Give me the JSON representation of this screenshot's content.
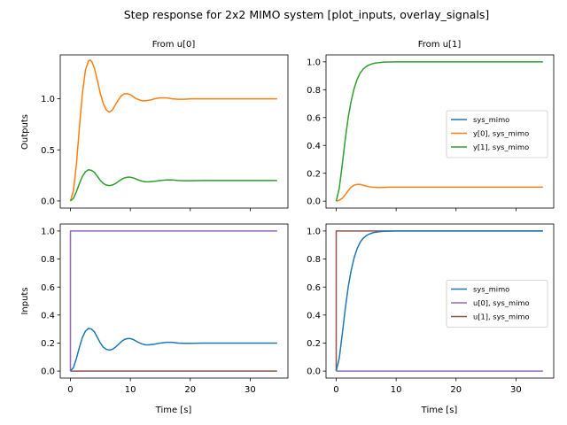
{
  "figure": {
    "title": "Step response for 2x2 MIMO system [plot_inputs, overlay_signals]",
    "col_titles": [
      "From u[0]",
      "From u[1]"
    ],
    "row_labels": [
      "Outputs",
      "Inputs"
    ],
    "xlabel": "Time [s]"
  },
  "chart_data": [
    {
      "type": "line",
      "panel": "outputs-from-u0",
      "title": "From u[0]",
      "xlabel": "",
      "ylabel": "Outputs",
      "xlim": [
        -1.7,
        36.3
      ],
      "ylim": [
        -0.07,
        1.43
      ],
      "xticks": [
        0,
        10,
        20,
        30
      ],
      "yticks": [
        0.0,
        0.5,
        1.0
      ],
      "ytick_labels": [
        "0.0",
        "0.5",
        "1.0"
      ],
      "show_xticklabels": false,
      "grid": false,
      "legend": null,
      "series": [
        {
          "name": "y[0], sys_mimo",
          "color": "#ff7f0e",
          "x": [
            0,
            0.5,
            1,
            1.5,
            2,
            2.5,
            3,
            3.3,
            3.6,
            4,
            4.5,
            5,
            5.5,
            6,
            6.5,
            7,
            7.5,
            8,
            8.5,
            9,
            9.5,
            10,
            10.5,
            11,
            11.5,
            12,
            12.5,
            13,
            13.5,
            14,
            14.5,
            15,
            16,
            17,
            18,
            19,
            20,
            22,
            25,
            30,
            34.5
          ],
          "y": [
            0,
            0.1,
            0.36,
            0.72,
            1.05,
            1.28,
            1.37,
            1.38,
            1.36,
            1.3,
            1.18,
            1.05,
            0.95,
            0.89,
            0.87,
            0.89,
            0.94,
            0.99,
            1.03,
            1.05,
            1.05,
            1.04,
            1.02,
            1.0,
            0.99,
            0.98,
            0.98,
            0.985,
            0.99,
            1.0,
            1.005,
            1.01,
            1.01,
            1.0,
            0.995,
            0.995,
            1.0,
            1.0,
            1.0,
            1.0,
            1.0
          ]
        },
        {
          "name": "y[1], sys_mimo",
          "color": "#2ca02c",
          "x": [
            0,
            0.5,
            1,
            1.5,
            2,
            2.5,
            3,
            3.5,
            4,
            4.5,
            5,
            5.5,
            6,
            6.5,
            7,
            7.5,
            8,
            8.5,
            9,
            9.5,
            10,
            10.5,
            11,
            11.5,
            12,
            12.5,
            13,
            14,
            15,
            16,
            17,
            18,
            19,
            20,
            22,
            25,
            30,
            34.5
          ],
          "y": [
            0,
            0.025,
            0.09,
            0.17,
            0.24,
            0.285,
            0.305,
            0.3,
            0.28,
            0.24,
            0.2,
            0.17,
            0.155,
            0.15,
            0.155,
            0.17,
            0.19,
            0.21,
            0.225,
            0.232,
            0.232,
            0.225,
            0.213,
            0.202,
            0.193,
            0.188,
            0.187,
            0.192,
            0.2,
            0.205,
            0.205,
            0.2,
            0.198,
            0.198,
            0.2,
            0.2,
            0.2,
            0.2
          ]
        }
      ]
    },
    {
      "type": "line",
      "panel": "outputs-from-u1",
      "title": "From u[1]",
      "xlabel": "",
      "ylabel": "",
      "xlim": [
        -1.7,
        36.3
      ],
      "ylim": [
        -0.05,
        1.05
      ],
      "xticks": [
        0,
        10,
        20,
        30
      ],
      "yticks": [
        0.0,
        0.2,
        0.4,
        0.6,
        0.8,
        1.0
      ],
      "ytick_labels": [
        "0.0",
        "0.2",
        "0.4",
        "0.6",
        "0.8",
        "1.0"
      ],
      "show_xticklabels": false,
      "grid": false,
      "legend": {
        "placement": "center-right",
        "entries": [
          {
            "label": "sys_mimo",
            "color": "#1f77b4"
          },
          {
            "label": "y[0], sys_mimo",
            "color": "#ff7f0e"
          },
          {
            "label": "y[1], sys_mimo",
            "color": "#2ca02c"
          }
        ]
      },
      "series": [
        {
          "name": "y[0], sys_mimo",
          "color": "#ff7f0e",
          "x": [
            0,
            0.5,
            1,
            1.5,
            2,
            2.5,
            3,
            3.5,
            4,
            4.5,
            5,
            5.5,
            6,
            7,
            8,
            9,
            10,
            12,
            15,
            20,
            25,
            30,
            34.5
          ],
          "y": [
            0,
            0.006,
            0.02,
            0.045,
            0.075,
            0.1,
            0.115,
            0.12,
            0.12,
            0.115,
            0.108,
            0.103,
            0.1,
            0.098,
            0.099,
            0.1,
            0.1,
            0.1,
            0.1,
            0.1,
            0.1,
            0.1,
            0.1
          ]
        },
        {
          "name": "y[1], sys_mimo",
          "color": "#2ca02c",
          "x": [
            0,
            0.5,
            1,
            1.5,
            2,
            2.5,
            3,
            3.5,
            4,
            4.5,
            5,
            5.5,
            6,
            6.5,
            7,
            7.5,
            8,
            9,
            10,
            12,
            15,
            20,
            25,
            30,
            34.5
          ],
          "y": [
            0,
            0.09,
            0.26,
            0.44,
            0.6,
            0.72,
            0.81,
            0.875,
            0.92,
            0.948,
            0.966,
            0.978,
            0.986,
            0.991,
            0.994,
            0.996,
            0.998,
            0.999,
            1.0,
            1.0,
            1.0,
            1.0,
            1.0,
            1.0,
            1.0
          ]
        }
      ]
    },
    {
      "type": "line",
      "panel": "inputs-from-u0",
      "title": "",
      "xlabel": "Time [s]",
      "ylabel": "Inputs",
      "xlim": [
        -1.7,
        36.3
      ],
      "ylim": [
        -0.05,
        1.05
      ],
      "xticks": [
        0,
        10,
        20,
        30
      ],
      "yticks": [
        0.0,
        0.2,
        0.4,
        0.6,
        0.8,
        1.0
      ],
      "ytick_labels": [
        "0.0",
        "0.2",
        "0.4",
        "0.6",
        "0.8",
        "1.0"
      ],
      "show_xticklabels": true,
      "grid": false,
      "legend": null,
      "series": [
        {
          "name": "u[1], sys_mimo",
          "color": "#8c564b",
          "x": [
            0,
            34.5
          ],
          "y": [
            0,
            0
          ]
        },
        {
          "name": "u[0], sys_mimo",
          "color": "#9467bd",
          "x": [
            0,
            0,
            34.5
          ],
          "y": [
            0,
            1,
            1
          ]
        },
        {
          "name": "sys_mimo",
          "color": "#1f77b4",
          "x": [
            0,
            0.5,
            1,
            1.5,
            2,
            2.5,
            3,
            3.5,
            4,
            4.5,
            5,
            5.5,
            6,
            6.5,
            7,
            7.5,
            8,
            8.5,
            9,
            9.5,
            10,
            10.5,
            11,
            11.5,
            12,
            12.5,
            13,
            14,
            15,
            16,
            17,
            18,
            19,
            20,
            22,
            25,
            30,
            34.5
          ],
          "y": [
            0,
            0.025,
            0.09,
            0.17,
            0.24,
            0.285,
            0.305,
            0.3,
            0.28,
            0.24,
            0.2,
            0.17,
            0.155,
            0.15,
            0.155,
            0.17,
            0.19,
            0.21,
            0.225,
            0.232,
            0.232,
            0.225,
            0.213,
            0.202,
            0.193,
            0.188,
            0.187,
            0.192,
            0.2,
            0.205,
            0.205,
            0.2,
            0.198,
            0.198,
            0.2,
            0.2,
            0.2,
            0.2
          ]
        }
      ]
    },
    {
      "type": "line",
      "panel": "inputs-from-u1",
      "title": "",
      "xlabel": "Time [s]",
      "ylabel": "",
      "xlim": [
        -1.7,
        36.3
      ],
      "ylim": [
        -0.05,
        1.05
      ],
      "xticks": [
        0,
        10,
        20,
        30
      ],
      "yticks": [
        0.0,
        0.2,
        0.4,
        0.6,
        0.8,
        1.0
      ],
      "ytick_labels": [
        "0.0",
        "0.2",
        "0.4",
        "0.6",
        "0.8",
        "1.0"
      ],
      "show_xticklabels": true,
      "grid": false,
      "legend": {
        "placement": "center-right",
        "entries": [
          {
            "label": "sys_mimo",
            "color": "#1f77b4"
          },
          {
            "label": "u[0], sys_mimo",
            "color": "#9467bd"
          },
          {
            "label": "u[1], sys_mimo",
            "color": "#8c564b"
          }
        ]
      },
      "series": [
        {
          "name": "u[0], sys_mimo",
          "color": "#9467bd",
          "x": [
            0,
            34.5
          ],
          "y": [
            0,
            0
          ]
        },
        {
          "name": "u[1], sys_mimo",
          "color": "#8c564b",
          "x": [
            0,
            0,
            34.5
          ],
          "y": [
            0,
            1,
            1
          ]
        },
        {
          "name": "sys_mimo",
          "color": "#1f77b4",
          "x": [
            0,
            0.5,
            1,
            1.5,
            2,
            2.5,
            3,
            3.5,
            4,
            4.5,
            5,
            5.5,
            6,
            6.5,
            7,
            7.5,
            8,
            9,
            10,
            12,
            15,
            20,
            25,
            30,
            34.5
          ],
          "y": [
            0,
            0.09,
            0.26,
            0.44,
            0.6,
            0.72,
            0.81,
            0.875,
            0.92,
            0.948,
            0.966,
            0.978,
            0.986,
            0.991,
            0.994,
            0.996,
            0.998,
            0.999,
            1.0,
            1.0,
            1.0,
            1.0,
            1.0,
            1.0,
            1.0
          ]
        }
      ]
    }
  ]
}
